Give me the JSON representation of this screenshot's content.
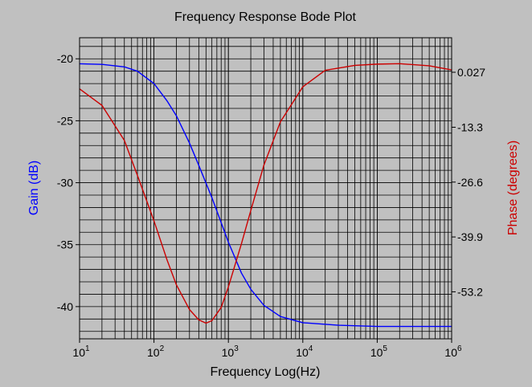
{
  "chart_data": {
    "type": "line",
    "title": "Frequency Response Bode Plot",
    "xlabel": "Frequency Log(Hz)",
    "xscale": "log",
    "xlim": [
      10,
      1000000
    ],
    "x_tick_labels": [
      {
        "base": "10",
        "exp": "1"
      },
      {
        "base": "10",
        "exp": "2"
      },
      {
        "base": "10",
        "exp": "3"
      },
      {
        "base": "10",
        "exp": "4"
      },
      {
        "base": "10",
        "exp": "5"
      },
      {
        "base": "10",
        "exp": "6"
      }
    ],
    "left_axis": {
      "label": "Gain (dB)",
      "color": "#0000ff",
      "ylim": [
        -42.6,
        -18.3
      ],
      "ticks": [
        -20,
        -25,
        -30,
        -35,
        -40
      ],
      "tick_labels": [
        "-20",
        "-25",
        "-30",
        "-35",
        "-40"
      ]
    },
    "right_axis": {
      "label": "Phase (degrees)",
      "color": "#cc0000",
      "ylim": [
        -64.6,
        8.4
      ],
      "ticks": [
        0.027,
        -13.3,
        -26.6,
        -39.9,
        -53.2
      ],
      "tick_labels": [
        "0.027",
        "-13.3",
        "-26.6",
        "-39.9",
        "-53.2"
      ]
    },
    "grid": true,
    "series": [
      {
        "name": "Gain",
        "axis": "left",
        "color": "#0000ff",
        "x": [
          10,
          20,
          40,
          60,
          100,
          150,
          200,
          300,
          400,
          600,
          1000,
          1500,
          2000,
          3000,
          5000,
          10000,
          30000,
          100000,
          1000000
        ],
        "y": [
          -20.4,
          -20.45,
          -20.65,
          -21.0,
          -22.0,
          -23.4,
          -24.6,
          -26.8,
          -28.6,
          -31.2,
          -34.8,
          -37.3,
          -38.6,
          -39.9,
          -40.8,
          -41.3,
          -41.5,
          -41.6,
          -41.6
        ]
      },
      {
        "name": "Phase",
        "axis": "right",
        "color": "#cc0000",
        "x": [
          10,
          20,
          40,
          60,
          100,
          150,
          200,
          300,
          400,
          500,
          600,
          800,
          1000,
          1500,
          2000,
          3000,
          5000,
          10000,
          20000,
          50000,
          100000,
          200000,
          500000,
          1000000
        ],
        "y": [
          -4.0,
          -8.0,
          -16.5,
          -25.0,
          -36.0,
          -45.5,
          -51.5,
          -57.5,
          -60.0,
          -60.8,
          -60.2,
          -57.0,
          -52.0,
          -41.5,
          -33.5,
          -22.5,
          -12.0,
          -3.5,
          0.5,
          1.7,
          2.0,
          2.1,
          1.6,
          0.6
        ]
      }
    ]
  }
}
